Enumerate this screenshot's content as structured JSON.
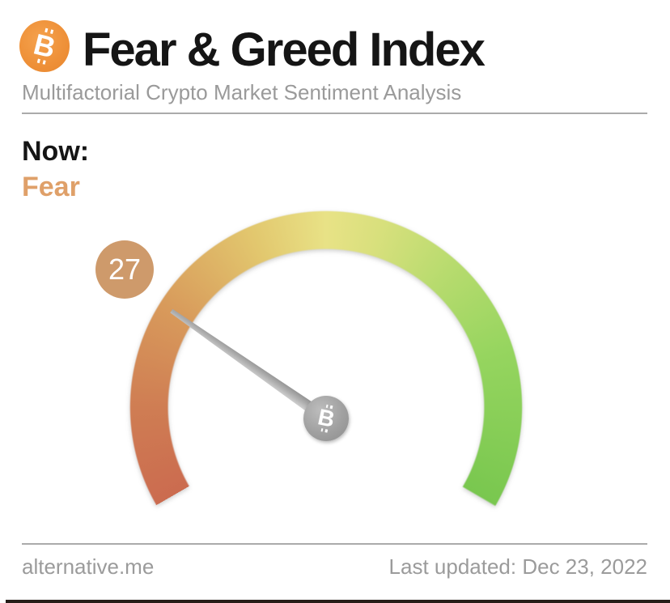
{
  "header": {
    "title": "Fear & Greed Index",
    "subtitle": "Multifactorial Crypto Market Sentiment Analysis",
    "logo_color": "#EE9038"
  },
  "icons": {
    "bitcoin_glyph": "B"
  },
  "status": {
    "label": "Now:",
    "classification": "Fear",
    "classification_color": "#DFA069"
  },
  "chart_data": {
    "type": "gauge",
    "title": "Fear & Greed Index",
    "value": 27,
    "min": 0,
    "max": 100,
    "classification": "Fear",
    "arc_sweep_deg": 240,
    "arc_start_deg": 210,
    "badge_color": "#CE9A6B",
    "needle_color": "#A9A9A9",
    "scale_colors": {
      "0": "#CB6B4F",
      "25": "#D89A5B",
      "50": "#E8E286",
      "75": "#A5D965",
      "100": "#79C74F"
    }
  },
  "footer": {
    "source": "alternative.me",
    "last_updated": "Last updated: Dec 23, 2022"
  }
}
